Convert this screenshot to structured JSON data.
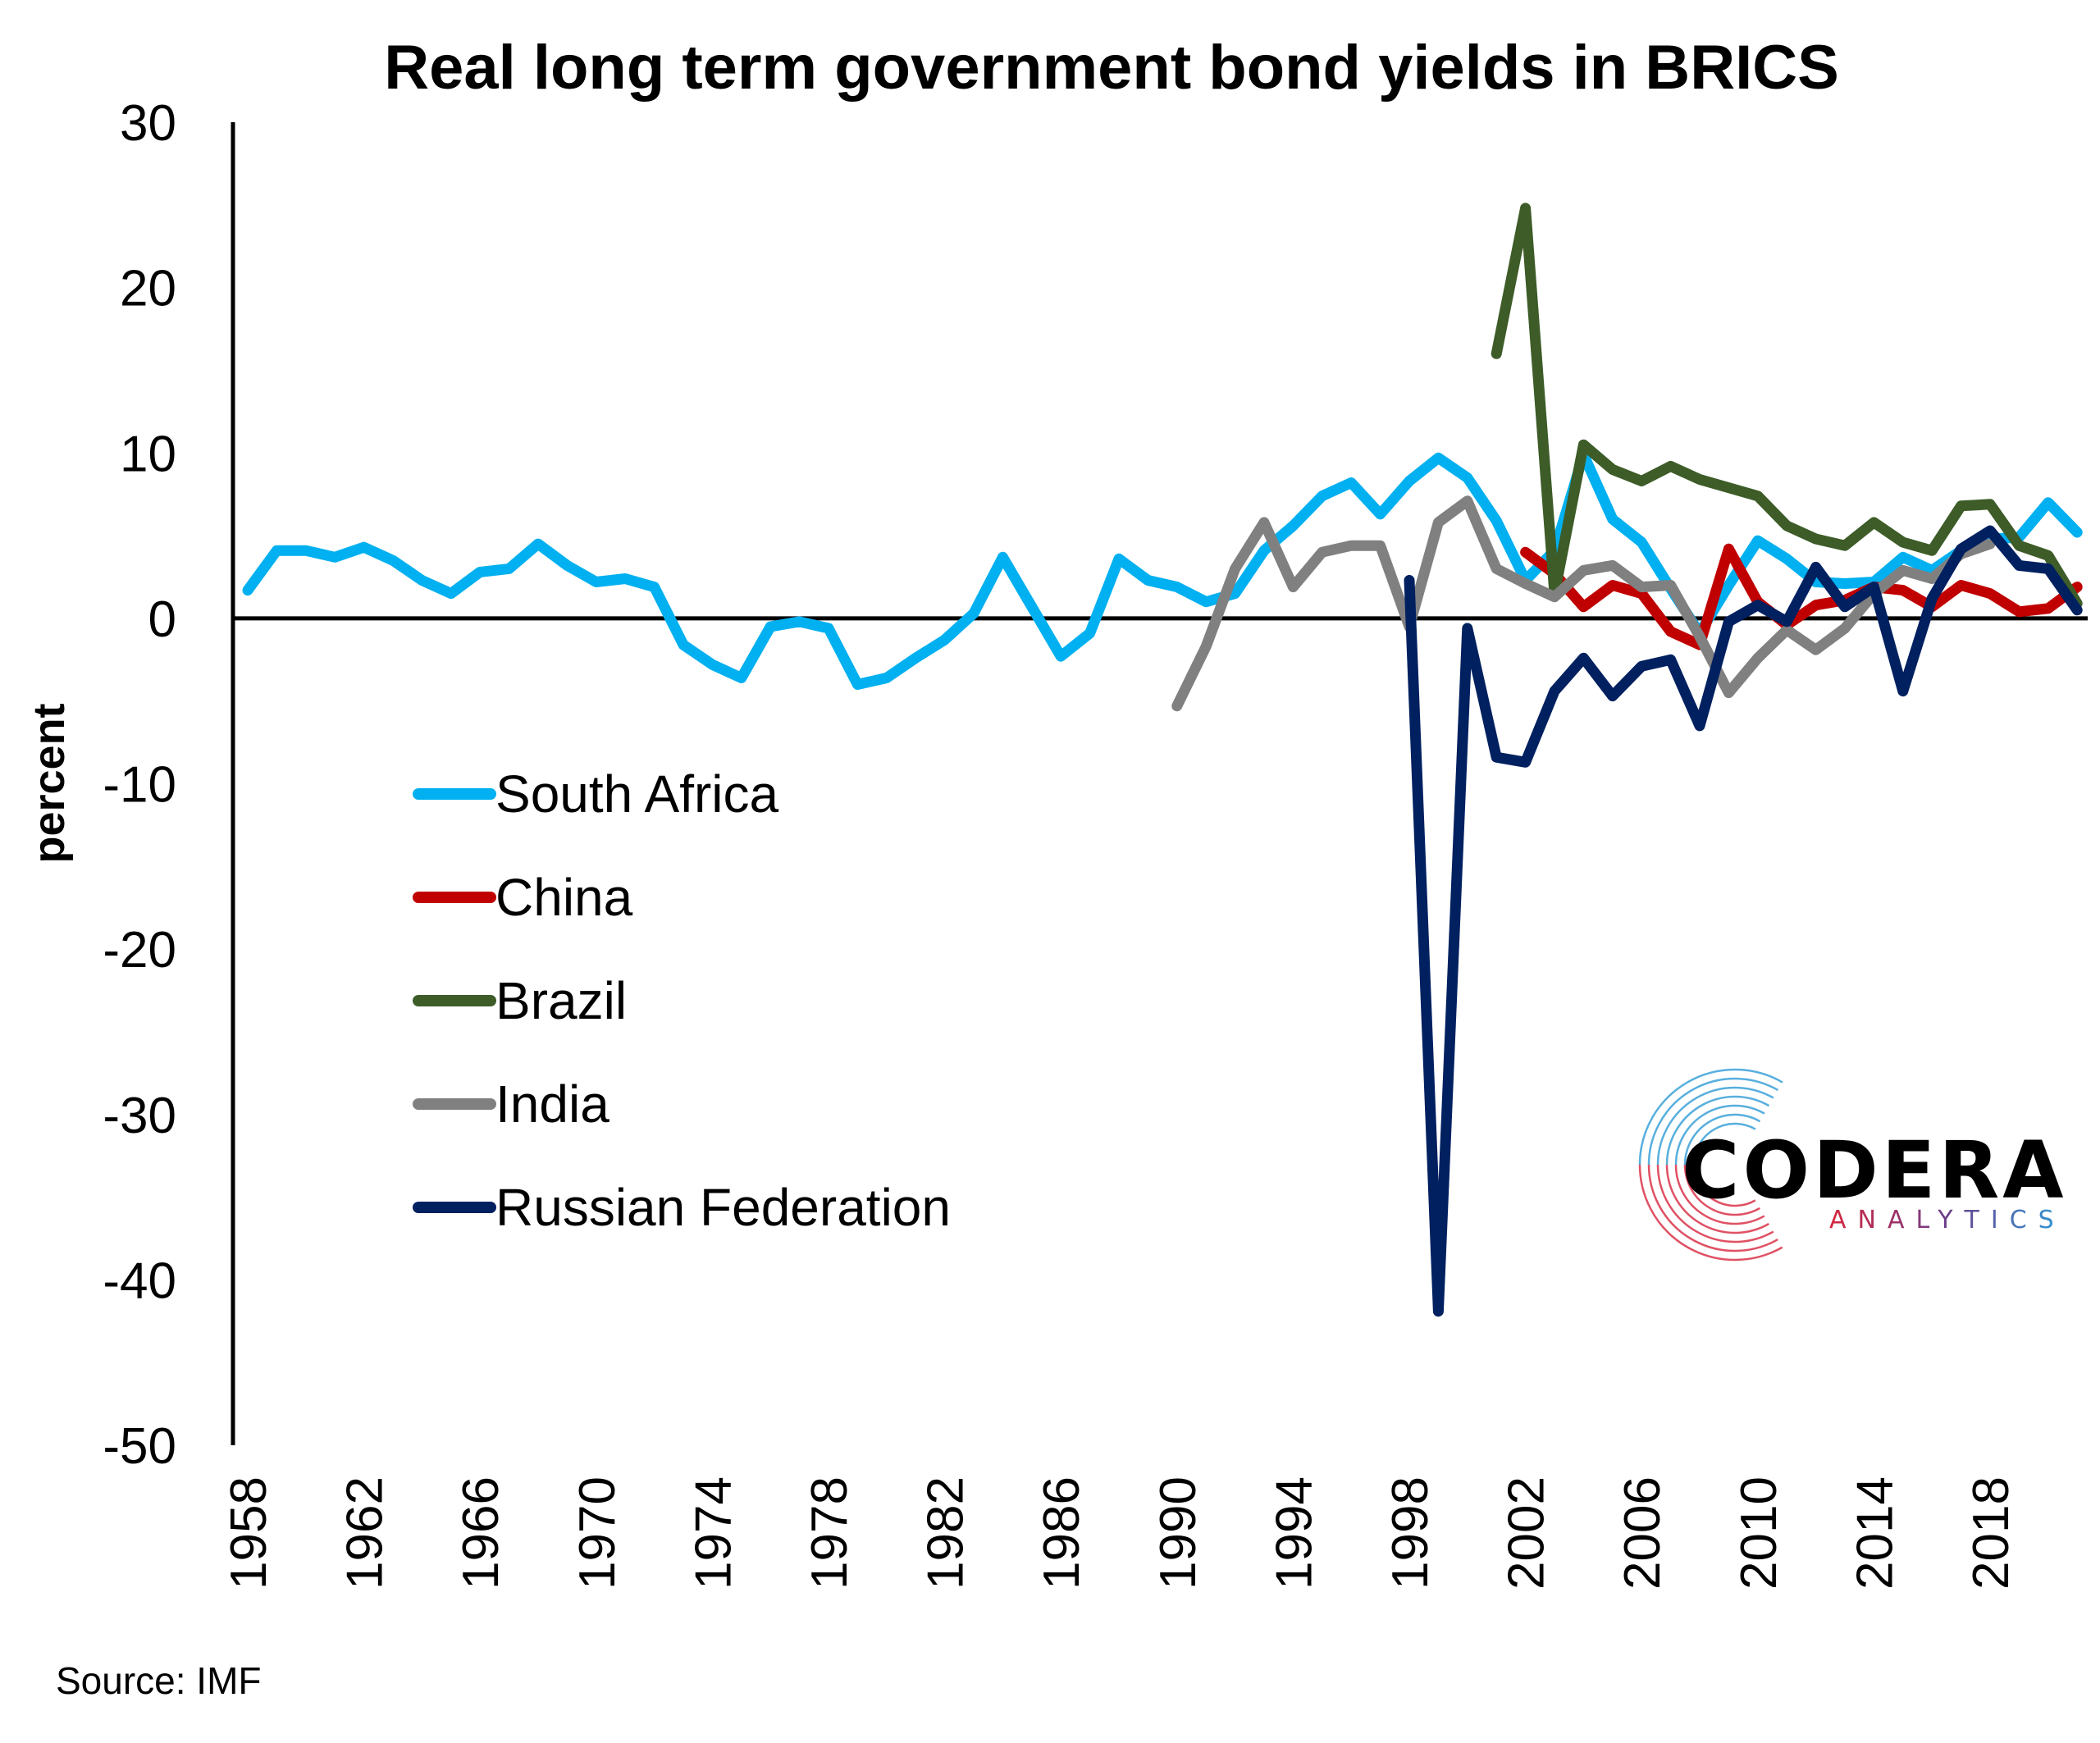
{
  "chart_data": {
    "type": "line",
    "title": "Real long term government bond yields in BRICS",
    "xlabel": "",
    "ylabel": "percent",
    "source": "Source: IMF",
    "ylim": [
      -50,
      30
    ],
    "yticks": [
      30,
      20,
      10,
      0,
      -10,
      -20,
      -30,
      -40,
      -50
    ],
    "ytick_labels": [
      "30",
      "20",
      "10",
      "0",
      "-10",
      "-20",
      "-30",
      "-40",
      "-50"
    ],
    "xlim": [
      1958,
      2021
    ],
    "xtick_labels": [
      "1958",
      "1962",
      "1966",
      "1970",
      "1974",
      "1978",
      "1982",
      "1986",
      "1990",
      "1994",
      "1998",
      "2002",
      "2006",
      "2010",
      "2014",
      "2018"
    ],
    "grid": false,
    "legend_position": "left-middle",
    "series": [
      {
        "name": "South Africa",
        "color": "#00B0F0",
        "start_year": 1958,
        "values": [
          1.7,
          4.1,
          4.1,
          3.7,
          4.3,
          3.5,
          2.3,
          1.5,
          2.8,
          3.0,
          4.5,
          3.2,
          2.2,
          2.4,
          1.9,
          -1.6,
          -2.8,
          -3.6,
          -0.5,
          -0.2,
          -0.6,
          -4.0,
          -3.6,
          -2.4,
          -1.3,
          0.3,
          3.7,
          0.7,
          -2.3,
          -0.9,
          3.6,
          2.3,
          1.9,
          1.0,
          1.5,
          4.1,
          5.6,
          7.4,
          8.2,
          6.3,
          8.3,
          9.7,
          8.5,
          5.9,
          2.3,
          4.1,
          9.9,
          6.0,
          4.6,
          1.8,
          -0.9,
          2.0,
          4.7,
          3.6,
          2.2,
          2.1,
          2.2,
          3.7,
          2.9,
          4.1,
          4.8,
          4.9,
          7.0,
          5.2
        ]
      },
      {
        "name": "China",
        "color": "#C00000",
        "start_year": 2002,
        "values": [
          4.0,
          2.7,
          0.7,
          2.0,
          1.5,
          -0.8,
          -1.6,
          4.2,
          1.0,
          -0.4,
          0.8,
          1.1,
          1.9,
          1.7,
          0.7,
          2.0,
          1.5,
          0.4,
          0.6,
          1.9
        ]
      },
      {
        "name": "Brazil",
        "color": "#3D5C28",
        "start_year": 2001,
        "values": [
          16.0,
          24.8,
          1.5,
          10.5,
          9.0,
          8.3,
          9.2,
          8.4,
          7.9,
          7.4,
          5.6,
          4.8,
          4.4,
          5.8,
          4.6,
          4.1,
          6.8,
          6.9,
          4.4,
          3.8,
          0.9
        ]
      },
      {
        "name": "India",
        "color": "#808080",
        "start_year": 1990,
        "values": [
          -5.3,
          -1.7,
          3.0,
          5.8,
          1.9,
          4.0,
          4.4,
          4.4,
          -0.5,
          5.8,
          7.1,
          3.0,
          2.1,
          1.3,
          2.9,
          3.2,
          1.9,
          2.0,
          -1.1,
          -4.5,
          -2.4,
          -0.7,
          -1.9,
          -0.6,
          1.5,
          2.9,
          2.4,
          3.9,
          4.5
        ]
      },
      {
        "name": "Russian Federation",
        "color": "#002060",
        "start_year": 1998,
        "values": [
          2.3,
          -41.9,
          -0.6,
          -8.4,
          -8.7,
          -4.4,
          -2.4,
          -4.7,
          -2.9,
          -2.5,
          -6.5,
          -0.2,
          0.8,
          -0.2,
          3.1,
          0.7,
          1.9,
          -4.4,
          1.2,
          4.2,
          5.3,
          3.2,
          3.0,
          0.5
        ]
      }
    ]
  },
  "logo": {
    "name": "CODERA",
    "subtitle": "ANALYTICS",
    "colors": [
      "#D7263D",
      "#2E9BD6"
    ]
  }
}
